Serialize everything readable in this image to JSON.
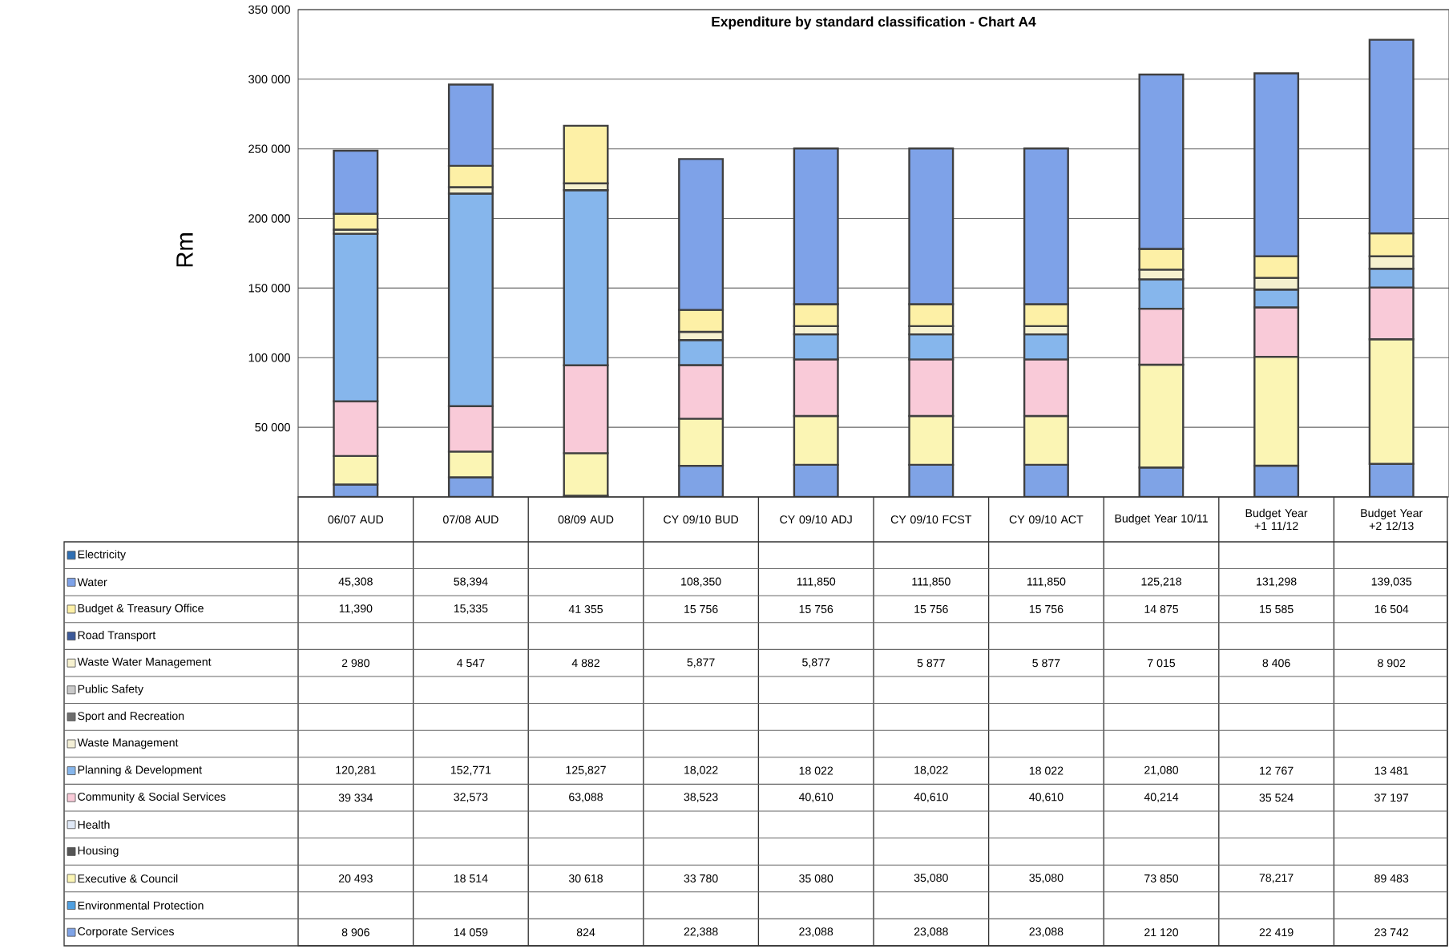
{
  "chart_data": {
    "type": "bar",
    "stacked": true,
    "title": "Expenditure by standard classification - Chart A4",
    "ylabel": "Rm",
    "categories": [
      "06/07 AUD",
      "07/08 AUD",
      "08/09 AUD",
      "CY 09/10 BUD",
      "CY 09/10 ADJ",
      "CY 09/10 FCST",
      "CY 09/10 ACT",
      "Budget Year 10/11",
      "Budget Year +1 11/12",
      "Budget Year +2 12/13"
    ],
    "ylim": [
      0,
      350000
    ],
    "yticks": [
      {
        "value": 50000,
        "label": "50 000"
      },
      {
        "value": 100000,
        "label": "100 000"
      },
      {
        "value": 150000,
        "label": "150 000"
      },
      {
        "value": 200000,
        "label": "200 000"
      },
      {
        "value": 250000,
        "label": "250 000"
      },
      {
        "value": 300000,
        "label": "300 000"
      },
      {
        "value": 350000,
        "label": "350 000"
      }
    ],
    "grid": "y",
    "legend": "bottom",
    "series": [
      {
        "name": "Corporate Services",
        "color": "#7fa3e6",
        "values": [
          8906,
          14059,
          824,
          22388,
          23088,
          23088,
          23088,
          21120,
          22419,
          23742
        ],
        "value_labels": [
          "8 906",
          "14 059",
          "824",
          "22,388",
          "23,088",
          "23,088",
          "23,088",
          "21 120",
          "22 419",
          "23 742"
        ]
      },
      {
        "name": "Environmental Protection",
        "color": "#4f9fe0",
        "values": [
          null,
          null,
          null,
          null,
          null,
          null,
          null,
          null,
          null,
          null
        ]
      },
      {
        "name": "Executive & Council",
        "color": "#fbf5b4",
        "values": [
          20493,
          18514,
          30618,
          33780,
          35080,
          35080,
          35080,
          73850,
          78217,
          89483
        ],
        "value_labels": [
          "20 493",
          "18 514",
          "30 618",
          "33 780",
          "35 080",
          "35,080",
          "35,080",
          "73 850",
          "78,217",
          "89 483"
        ]
      },
      {
        "name": "Housing",
        "color": "#555555",
        "values": [
          null,
          null,
          null,
          null,
          null,
          null,
          null,
          null,
          null,
          null
        ]
      },
      {
        "name": "Health",
        "color": "#dfe8f6",
        "values": [
          null,
          null,
          null,
          null,
          null,
          null,
          null,
          null,
          null,
          null
        ]
      },
      {
        "name": "Community & Social Services",
        "color": "#f9cad8",
        "values": [
          39334,
          32573,
          63088,
          38523,
          40610,
          40610,
          40610,
          40214,
          35524,
          37197
        ],
        "value_labels": [
          "39 334",
          "32,573",
          "63,088",
          "38,523",
          "40,610",
          "40,610",
          "40,610",
          "40,214",
          "35 524",
          "37 197"
        ]
      },
      {
        "name": "Planning & Development",
        "color": "#86b6ec",
        "values": [
          120281,
          152771,
          125827,
          18022,
          18022,
          18022,
          18022,
          21080,
          12767,
          13481
        ],
        "value_labels": [
          "120,281",
          "152,771",
          "125,827",
          "18,022",
          "18 022",
          "18,022",
          "18 022",
          "21,080",
          "12 767",
          "13 481"
        ]
      },
      {
        "name": "Waste Management",
        "color": "#f3efd6",
        "values": [
          null,
          null,
          null,
          null,
          null,
          null,
          null,
          null,
          null,
          null
        ]
      },
      {
        "name": "Sport and Recreation",
        "color": "#6d6d6d",
        "values": [
          null,
          null,
          null,
          null,
          null,
          null,
          null,
          null,
          null,
          null
        ]
      },
      {
        "name": "Public Safety",
        "color": "#c9c9c9",
        "values": [
          null,
          null,
          null,
          null,
          null,
          null,
          null,
          null,
          null,
          null
        ]
      },
      {
        "name": "Waste Water Management",
        "color": "#f6f1cf",
        "values": [
          2980,
          4547,
          4882,
          5877,
          5877,
          5877,
          5877,
          7015,
          8406,
          8902
        ],
        "value_labels": [
          "2 980",
          "4 547",
          "4 882",
          "5,877",
          "5,877",
          "5 877",
          "5 877",
          "7 015",
          "8 406",
          "8 902"
        ]
      },
      {
        "name": "Road Transport",
        "color": "#3c5a9a",
        "values": [
          null,
          null,
          null,
          null,
          null,
          null,
          null,
          null,
          null,
          null
        ]
      },
      {
        "name": "Budget & Treasury Office",
        "color": "#fdf0a6",
        "values": [
          11390,
          15335,
          41355,
          15756,
          15756,
          15756,
          15756,
          14875,
          15585,
          16504
        ],
        "value_labels": [
          "11,390",
          "15,335",
          "41 355",
          "15 756",
          "15 756",
          "15 756",
          "15 756",
          "14 875",
          "15 585",
          "16 504"
        ]
      },
      {
        "name": "Water",
        "color": "#7ea2e8",
        "values": [
          45308,
          58394,
          null,
          108350,
          111850,
          111850,
          111850,
          125218,
          131298,
          139035
        ],
        "value_labels": [
          "45,308",
          "58,394",
          null,
          "108,350",
          "111,850",
          "111,850",
          "111,850",
          "125,218",
          "131,298",
          "139,035"
        ]
      },
      {
        "name": "Electricity",
        "color": "#2f6fb3",
        "values": [
          null,
          null,
          null,
          null,
          null,
          null,
          null,
          null,
          null,
          null
        ]
      }
    ]
  }
}
